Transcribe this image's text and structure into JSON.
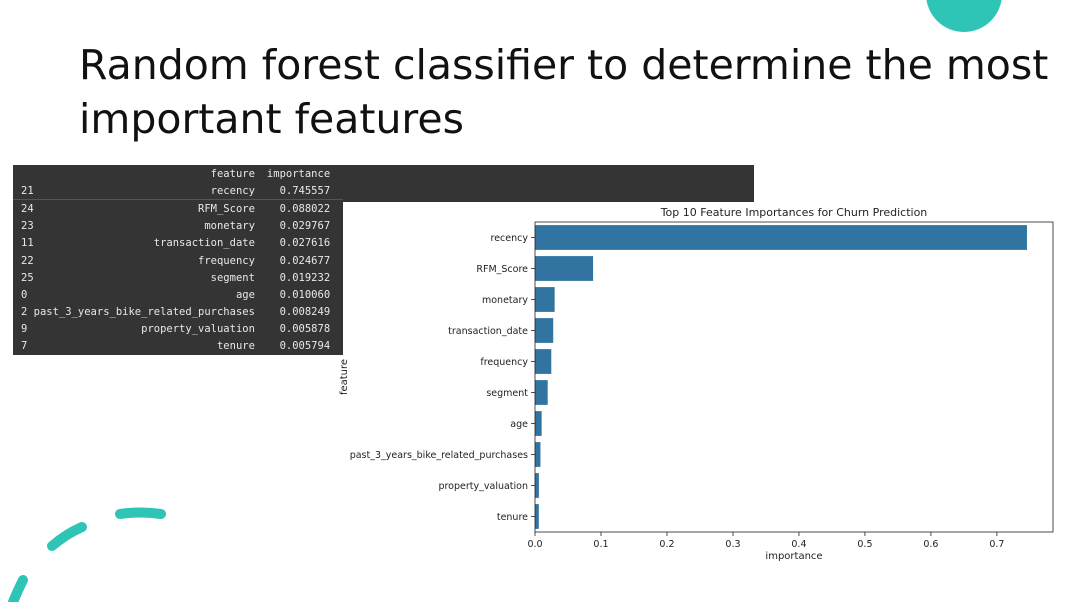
{
  "title": {
    "line1": "Random forest classifier to determine the most",
    "line2": "important features"
  },
  "colors": {
    "accent": "#2ec4b6",
    "bar": "#3274a1",
    "table_bg": "#343434"
  },
  "table": {
    "headers": [
      "feature",
      "importance"
    ],
    "rows": [
      {
        "index": "21",
        "feature": "recency",
        "importance": "0.745557"
      },
      {
        "index": "24",
        "feature": "RFM_Score",
        "importance": "0.088022"
      },
      {
        "index": "23",
        "feature": "monetary",
        "importance": "0.029767"
      },
      {
        "index": "11",
        "feature": "transaction_date",
        "importance": "0.027616"
      },
      {
        "index": "22",
        "feature": "frequency",
        "importance": "0.024677"
      },
      {
        "index": "25",
        "feature": "segment",
        "importance": "0.019232"
      },
      {
        "index": "0",
        "feature": "age",
        "importance": "0.010060"
      },
      {
        "index": "2",
        "feature": "past_3_years_bike_related_purchases",
        "importance": "0.008249"
      },
      {
        "index": "9",
        "feature": "property_valuation",
        "importance": "0.005878"
      },
      {
        "index": "7",
        "feature": "tenure",
        "importance": "0.005794"
      }
    ]
  },
  "chart_data": {
    "type": "bar",
    "orientation": "horizontal",
    "title": "Top 10 Feature Importances for Churn Prediction",
    "xlabel": "importance",
    "ylabel": "feature",
    "categories": [
      "recency",
      "RFM_Score",
      "monetary",
      "transaction_date",
      "frequency",
      "segment",
      "age",
      "past_3_years_bike_related_purchases",
      "property_valuation",
      "tenure"
    ],
    "values": [
      0.745557,
      0.088022,
      0.029767,
      0.027616,
      0.024677,
      0.019232,
      0.01006,
      0.008249,
      0.005878,
      0.005794
    ],
    "xlim": [
      0,
      0.785
    ],
    "xticks": [
      0.0,
      0.1,
      0.2,
      0.3,
      0.4,
      0.5,
      0.6,
      0.7
    ],
    "xtick_labels": [
      "0.0",
      "0.1",
      "0.2",
      "0.3",
      "0.4",
      "0.5",
      "0.6",
      "0.7"
    ],
    "grid": false,
    "legend": "none"
  }
}
